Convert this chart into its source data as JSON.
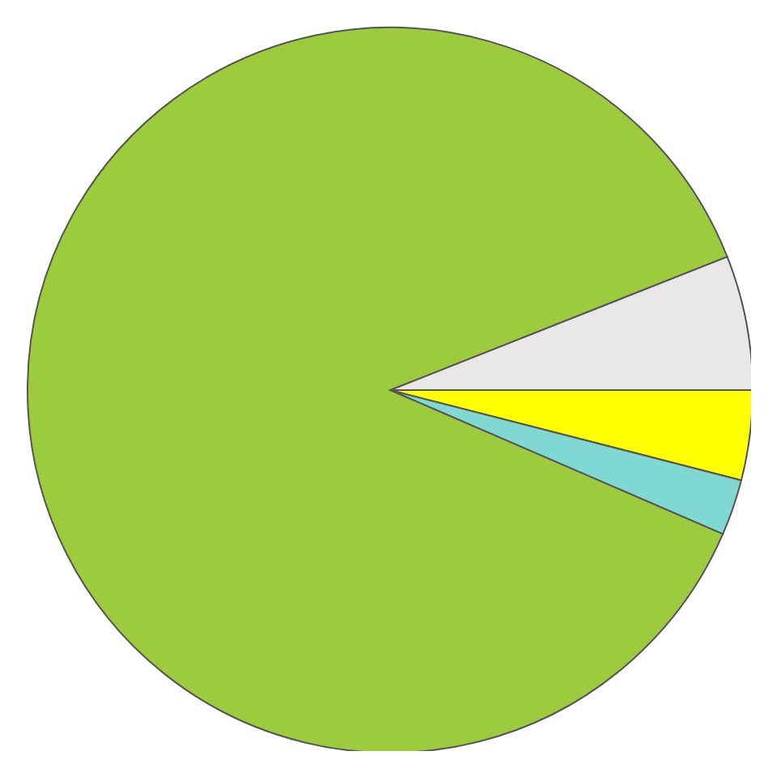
{
  "chart_data": {
    "type": "pie",
    "categories": [
      null,
      null,
      null,
      null
    ],
    "values": [
      6,
      4,
      2.5,
      87.5
    ],
    "colors": [
      "#e9e7e8",
      "#ffff00",
      "#7fd8d2",
      "#9dcb3e"
    ]
  }
}
